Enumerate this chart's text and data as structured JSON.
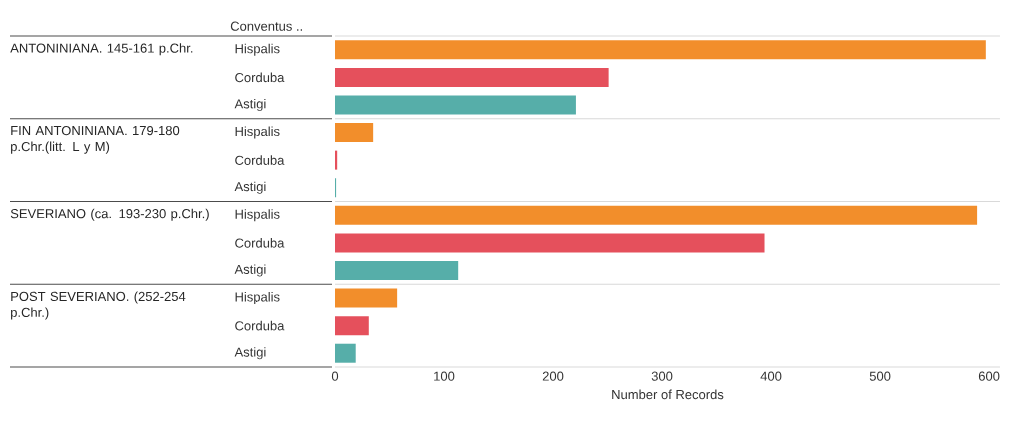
{
  "chart_data": {
    "type": "bar",
    "orientation": "horizontal",
    "legend_title": "Conventus ..",
    "xlabel": "Number of Records",
    "categories": [
      "Hispalis",
      "Corduba",
      "Astigi",
      "Hispalis",
      "Corduba",
      "Astigi",
      "Hispalis",
      "Corduba",
      "Astigi",
      "Hispalis",
      "Corduba",
      "Astigi"
    ],
    "values": [
      597,
      251,
      221,
      35,
      2,
      1,
      589,
      394,
      113,
      57,
      31,
      19
    ],
    "colors": [
      "#f28e2b",
      "#e5505c",
      "#56aea9",
      "#f28e2b",
      "#e5505c",
      "#56aea9",
      "#f28e2b",
      "#e5505c",
      "#56aea9",
      "#f28e2b",
      "#e5505c",
      "#56aea9"
    ],
    "annotations": [
      "ANTONINIANA. 145-161 p.Chr.",
      "FIN ANTONINIANA. 179-180 p.Chr.(litt. L y M)",
      "SEVERIANO (ca. 193-230 p.Chr.)",
      "POST SEVERIANO. (252-254 p.Chr.)"
    ],
    "xlim": [
      0,
      610
    ],
    "xticks": [
      0,
      100,
      200,
      300,
      400,
      500,
      600
    ]
  }
}
